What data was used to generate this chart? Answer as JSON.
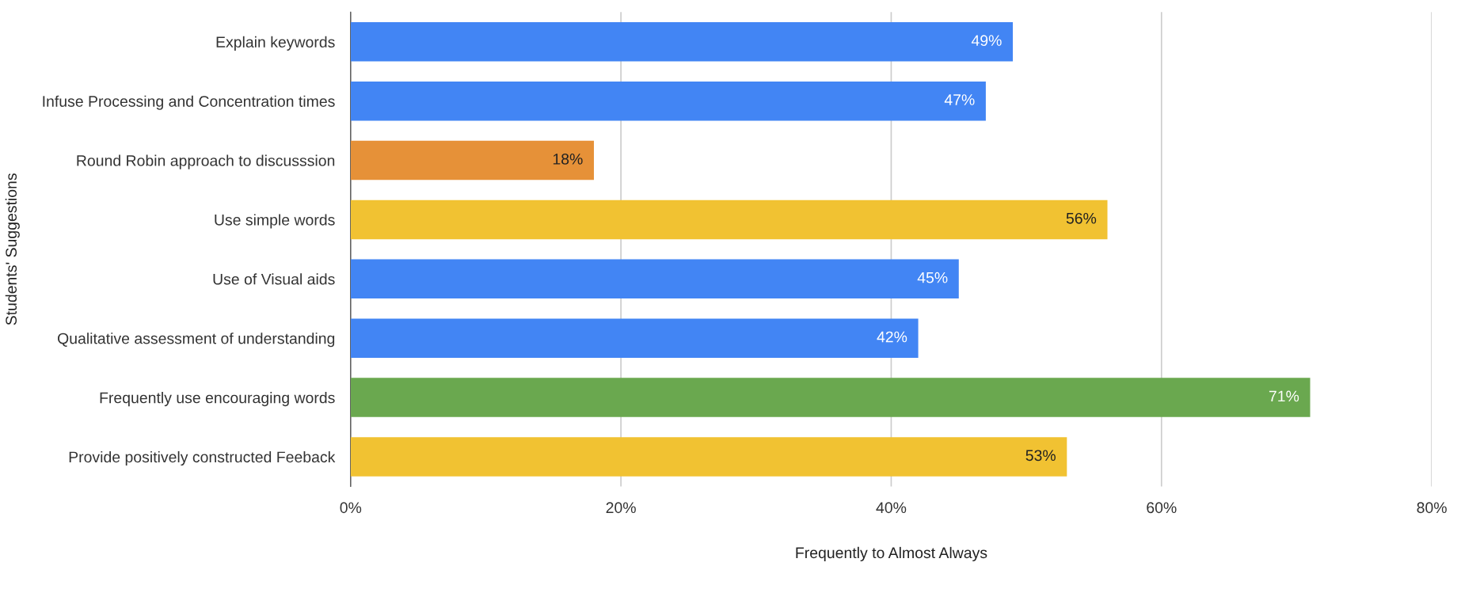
{
  "chart_data": {
    "type": "bar",
    "orientation": "horizontal",
    "categories": [
      "Explain keywords",
      "Infuse Processing and Concentration times",
      "Round Robin approach to discusssion",
      "Use simple words",
      "Use of Visual aids",
      "Qualitative assessment of understanding",
      "Frequently use encouraging words",
      "Provide positively constructed Feeback"
    ],
    "values": [
      49,
      47,
      18,
      56,
      45,
      42,
      71,
      53
    ],
    "colors": [
      "#4285f4",
      "#4285f4",
      "#e69138",
      "#f1c232",
      "#4285f4",
      "#4285f4",
      "#6aa84f",
      "#f1c232"
    ],
    "value_labels": [
      "49%",
      "47%",
      "18%",
      "56%",
      "45%",
      "42%",
      "71%",
      "53%"
    ],
    "xlim": [
      0,
      80
    ],
    "xticks": [
      {
        "value": 0,
        "label": "0%"
      },
      {
        "value": 20,
        "label": "20%"
      },
      {
        "value": 40,
        "label": "40%"
      },
      {
        "value": 60,
        "label": "60%"
      },
      {
        "value": 80,
        "label": "80%"
      }
    ],
    "xlabel": "Frequently to Almost Always",
    "ylabel": "Students' Suggestions",
    "grid": "x"
  }
}
